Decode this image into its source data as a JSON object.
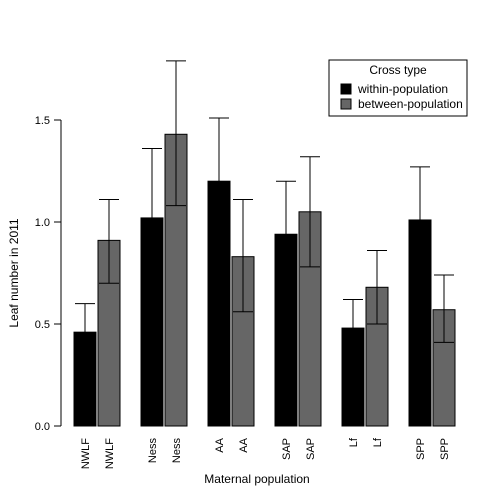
{
  "chart_data": {
    "type": "bar",
    "title": "",
    "xlabel": "Maternal population",
    "ylabel": "Leaf number in 2011",
    "ylim": [
      0,
      1.8
    ],
    "yticks": [
      "0.0",
      "0.5",
      "1.0",
      "1.5"
    ],
    "grid": false,
    "legend": {
      "title": "Cross type",
      "position": "top-right"
    },
    "categories": [
      "NWLF",
      "Ness",
      "AA",
      "SAP",
      "Lf",
      "SPP"
    ],
    "series": [
      {
        "name": "within-population",
        "color": "#000000",
        "values": [
          0.46,
          1.02,
          1.2,
          0.94,
          0.48,
          1.01
        ],
        "err_low": [
          0.33,
          0.68,
          0.89,
          0.68,
          0.34,
          0.75
        ],
        "err_high": [
          0.6,
          1.36,
          1.51,
          1.2,
          0.62,
          1.27
        ]
      },
      {
        "name": "between-population",
        "color": "#666666",
        "values": [
          0.91,
          1.43,
          0.83,
          1.05,
          0.68,
          0.57
        ],
        "err_low": [
          0.7,
          1.08,
          0.56,
          0.78,
          0.5,
          0.41
        ],
        "err_high": [
          1.11,
          1.79,
          1.11,
          1.32,
          0.86,
          0.74
        ]
      }
    ]
  }
}
